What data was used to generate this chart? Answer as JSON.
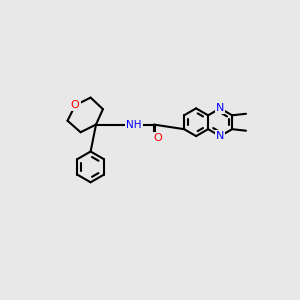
{
  "bg_color": "#e8e8e8",
  "bond_color": "#000000",
  "bond_width": 1.5,
  "atom_colors": {
    "O": "#ff0000",
    "N": "#0000ff",
    "C": "#000000",
    "H": "#0000ff"
  },
  "font_size": 7.5
}
